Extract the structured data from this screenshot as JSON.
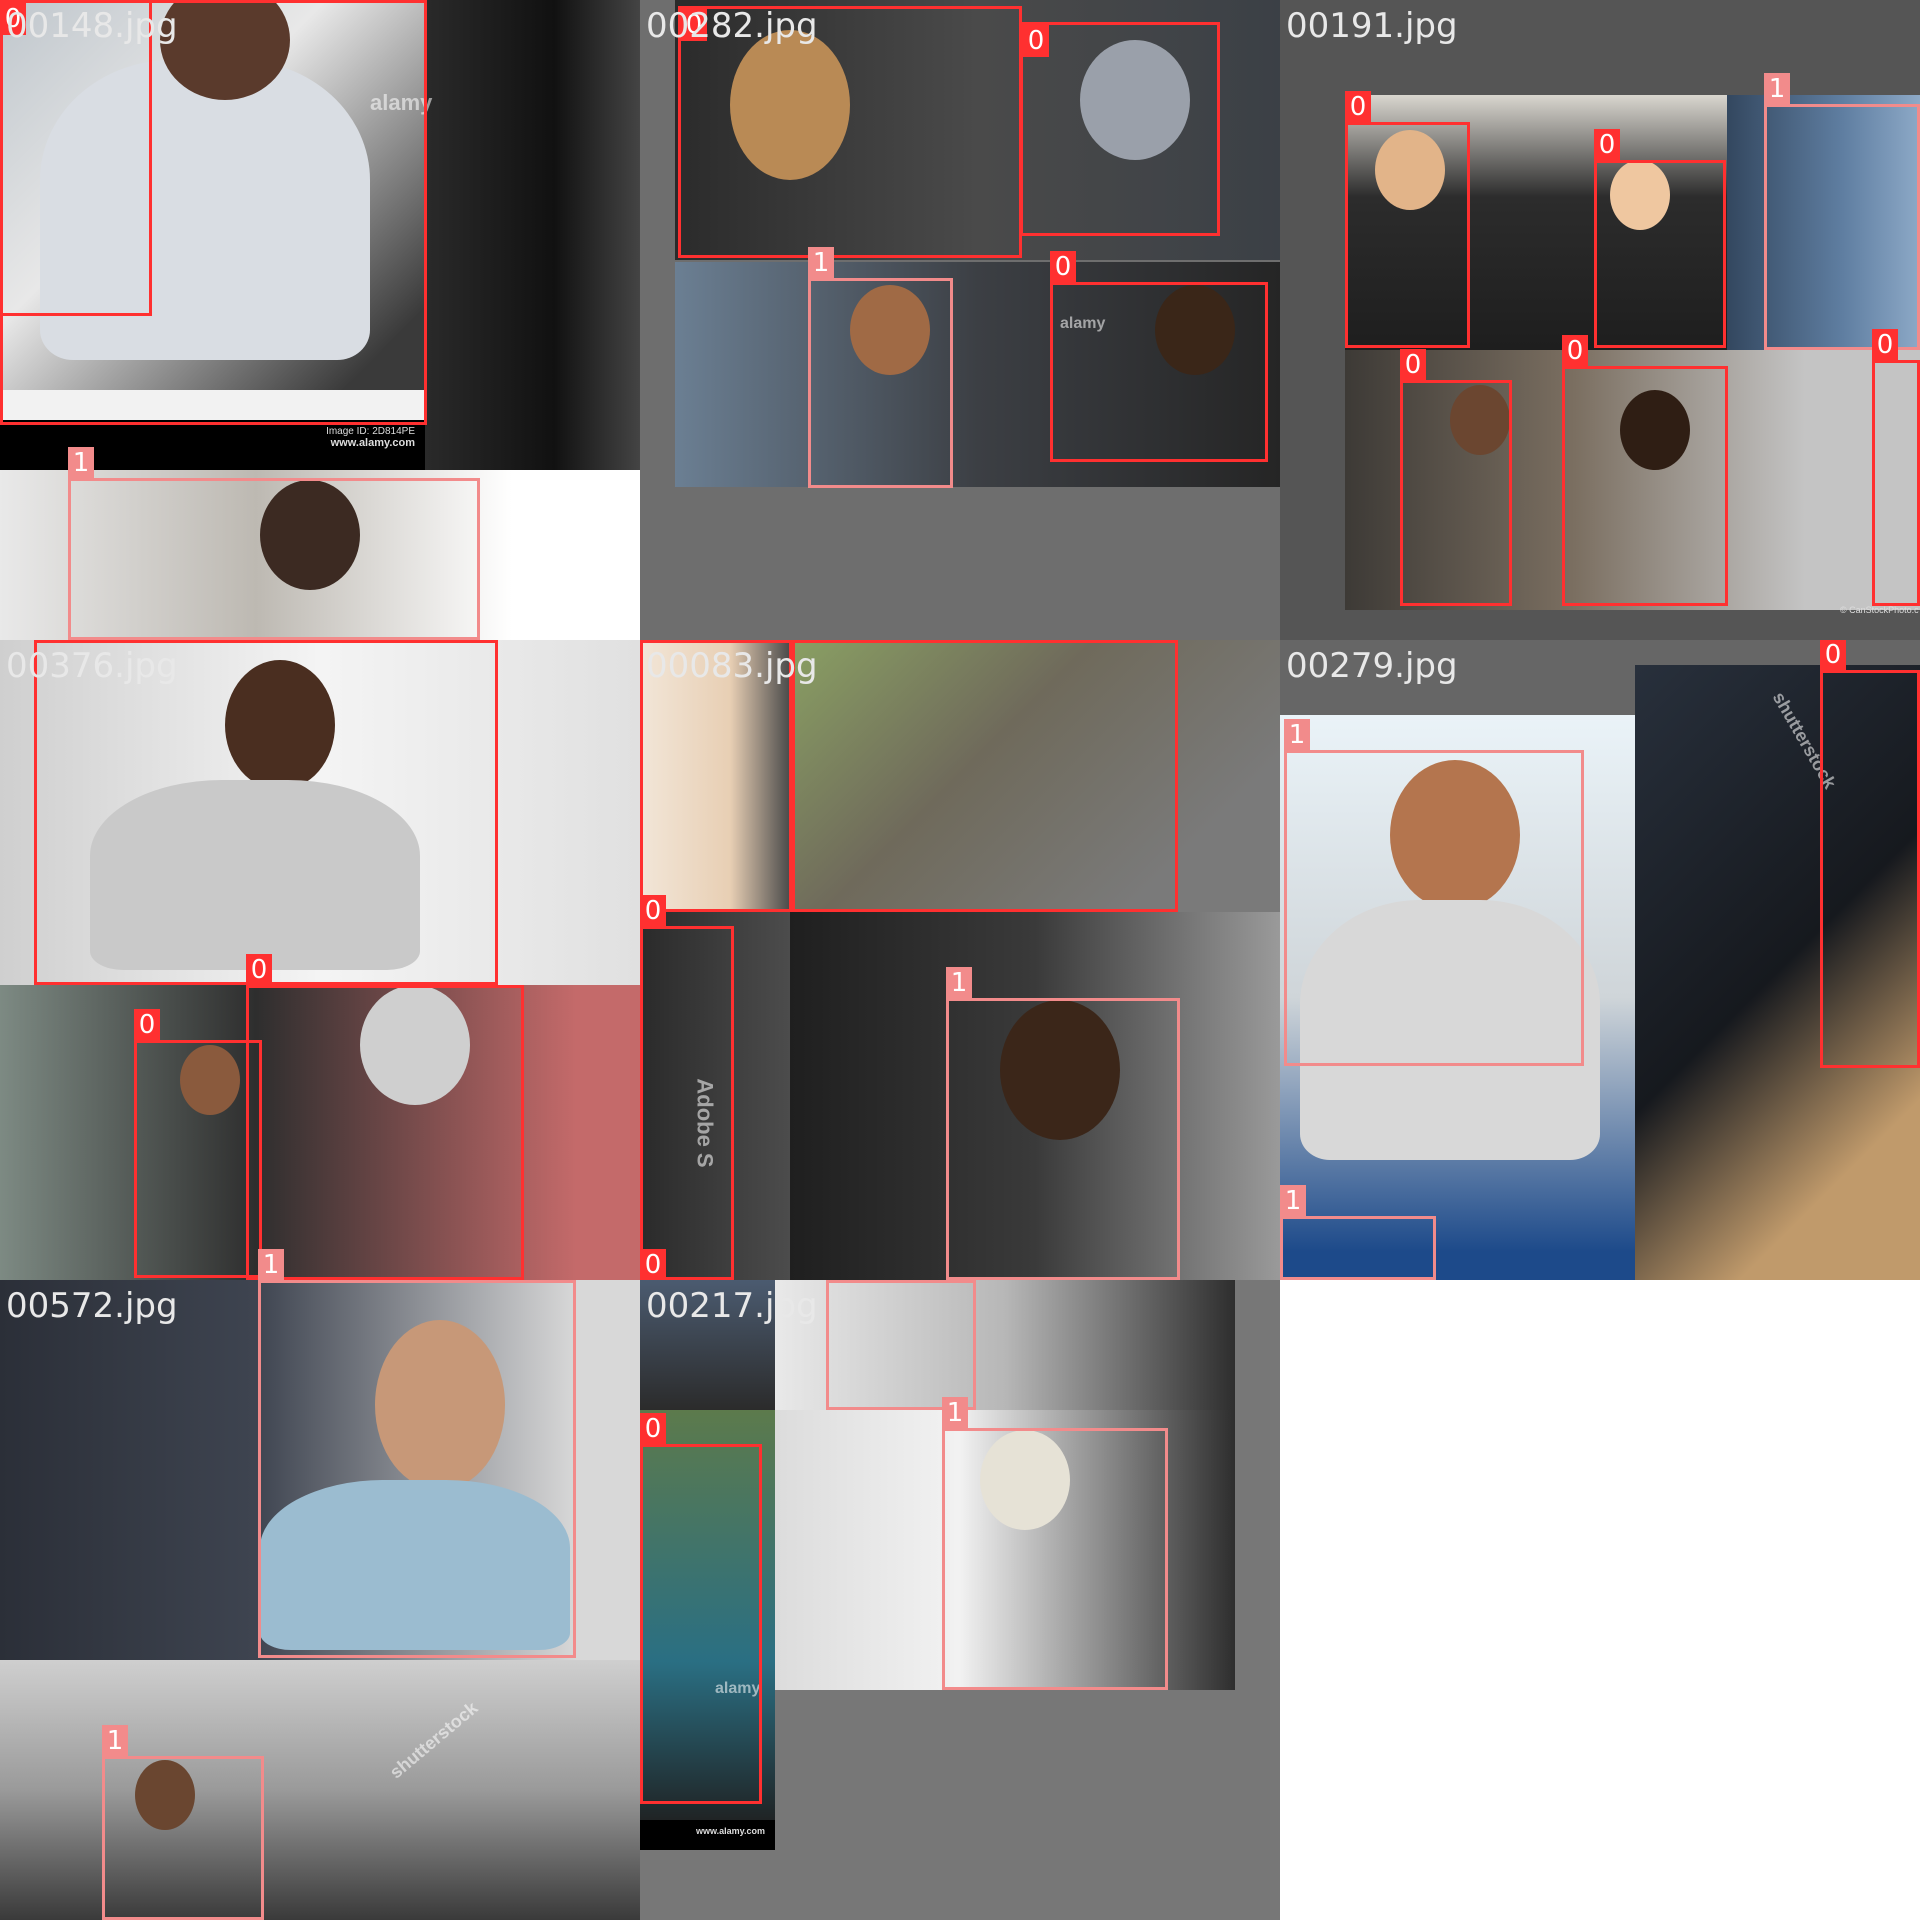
{
  "cells": [
    {
      "filename": "00148.jpg",
      "boxes": [
        {
          "cls": "0"
        },
        {
          "cls": "0"
        },
        {
          "cls": "1"
        },
        {
          "cls": "0"
        }
      ],
      "caption_id": "Image ID: 2D814PE",
      "caption_url": "www.alamy.com",
      "watermark": "alamy"
    },
    {
      "filename": "00282.jpg",
      "boxes": [
        {
          "cls": "0"
        },
        {
          "cls": "0"
        },
        {
          "cls": "1"
        },
        {
          "cls": "0"
        }
      ],
      "watermark": "alamy"
    },
    {
      "filename": "00191.jpg",
      "boxes": [
        {
          "cls": "0"
        },
        {
          "cls": "0"
        },
        {
          "cls": "1"
        },
        {
          "cls": "0"
        },
        {
          "cls": "0"
        },
        {
          "cls": "0"
        }
      ],
      "credit": "© CanStockPhoto.c"
    },
    {
      "filename": "00376.jpg",
      "boxes": [
        {
          "cls": "0"
        },
        {
          "cls": "0"
        },
        {
          "cls": "0"
        },
        {
          "cls": "1"
        }
      ]
    },
    {
      "filename": "00083.jpg",
      "boxes": [
        {
          "cls": "0"
        },
        {
          "cls": "0"
        },
        {
          "cls": "0"
        },
        {
          "cls": "1"
        },
        {
          "cls": "0"
        }
      ],
      "watermark": "Adobe S"
    },
    {
      "filename": "00279.jpg",
      "boxes": [
        {
          "cls": "1"
        },
        {
          "cls": "0"
        },
        {
          "cls": "1"
        }
      ],
      "watermark": "shutterstock"
    },
    {
      "filename": "00572.jpg",
      "boxes": [
        {
          "cls": "1"
        },
        {
          "cls": "1"
        }
      ],
      "watermark": "shutterstock"
    },
    {
      "filename": "00217.jpg",
      "boxes": [
        {
          "cls": "1"
        },
        {
          "cls": "0"
        },
        {
          "cls": "1"
        }
      ],
      "watermark": "alamy",
      "caption_url": "www.alamy.com"
    }
  ],
  "colors": {
    "class0": "#ff3030",
    "class1": "#f28b8b",
    "grid_bg": "#6e6e6e"
  }
}
